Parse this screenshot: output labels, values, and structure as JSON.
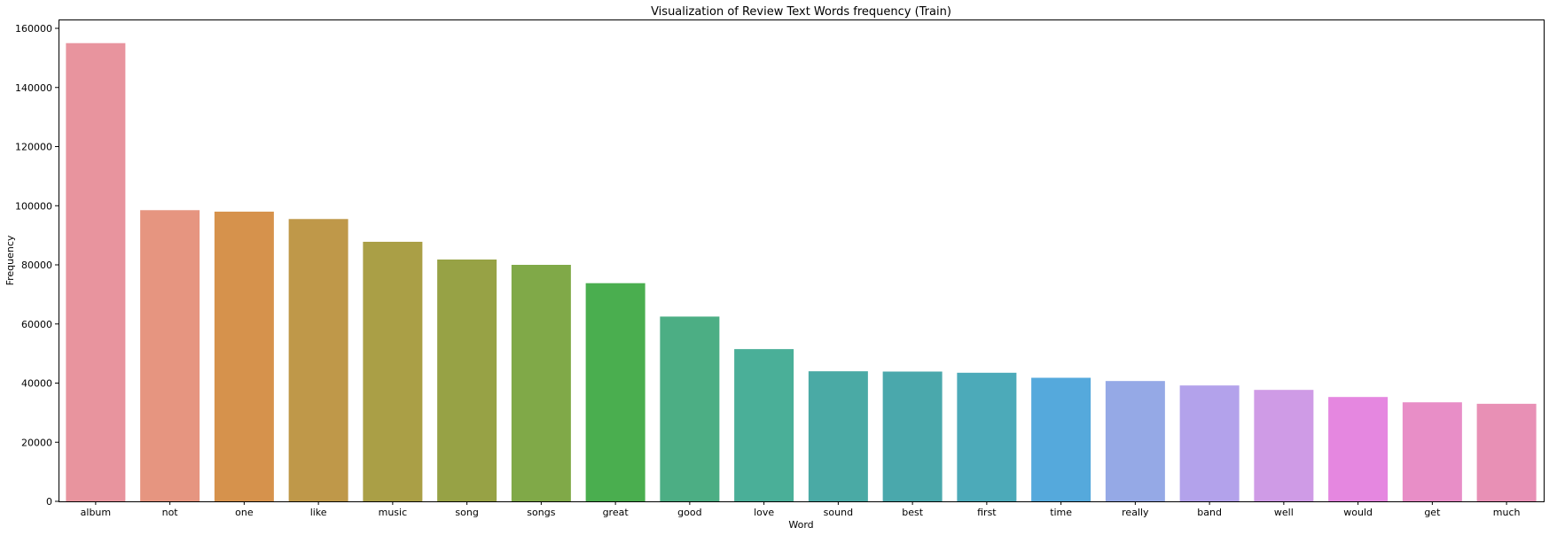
{
  "chart_data": {
    "type": "bar",
    "title": "Visualization of Review Text Words frequency (Train)",
    "xlabel": "Word",
    "ylabel": "Frequency",
    "ylim": [
      0,
      163000
    ],
    "yticks": [
      0,
      20000,
      40000,
      60000,
      80000,
      100000,
      120000,
      140000,
      160000
    ],
    "grid": false,
    "legend": "none",
    "categories": [
      "album",
      "not",
      "one",
      "like",
      "music",
      "song",
      "songs",
      "great",
      "good",
      "love",
      "sound",
      "best",
      "first",
      "time",
      "really",
      "band",
      "well",
      "would",
      "get",
      "much"
    ],
    "values": [
      155000,
      98500,
      98000,
      95500,
      87800,
      81800,
      80000,
      73800,
      62500,
      51500,
      44000,
      43900,
      43500,
      41800,
      40700,
      39200,
      37700,
      35300,
      33500,
      33000
    ],
    "colors": [
      "#e8949e",
      "#e69580",
      "#d6924c",
      "#bf9849",
      "#aa9f46",
      "#97a245",
      "#80a948",
      "#4aae4f",
      "#4cae84",
      "#4aaf98",
      "#4aaaa5",
      "#4aa8ac",
      "#4caab9",
      "#55a9dc",
      "#95a9e6",
      "#b3a2eb",
      "#cf9be6",
      "#e587e0",
      "#e88ec7",
      "#e890b5"
    ]
  }
}
